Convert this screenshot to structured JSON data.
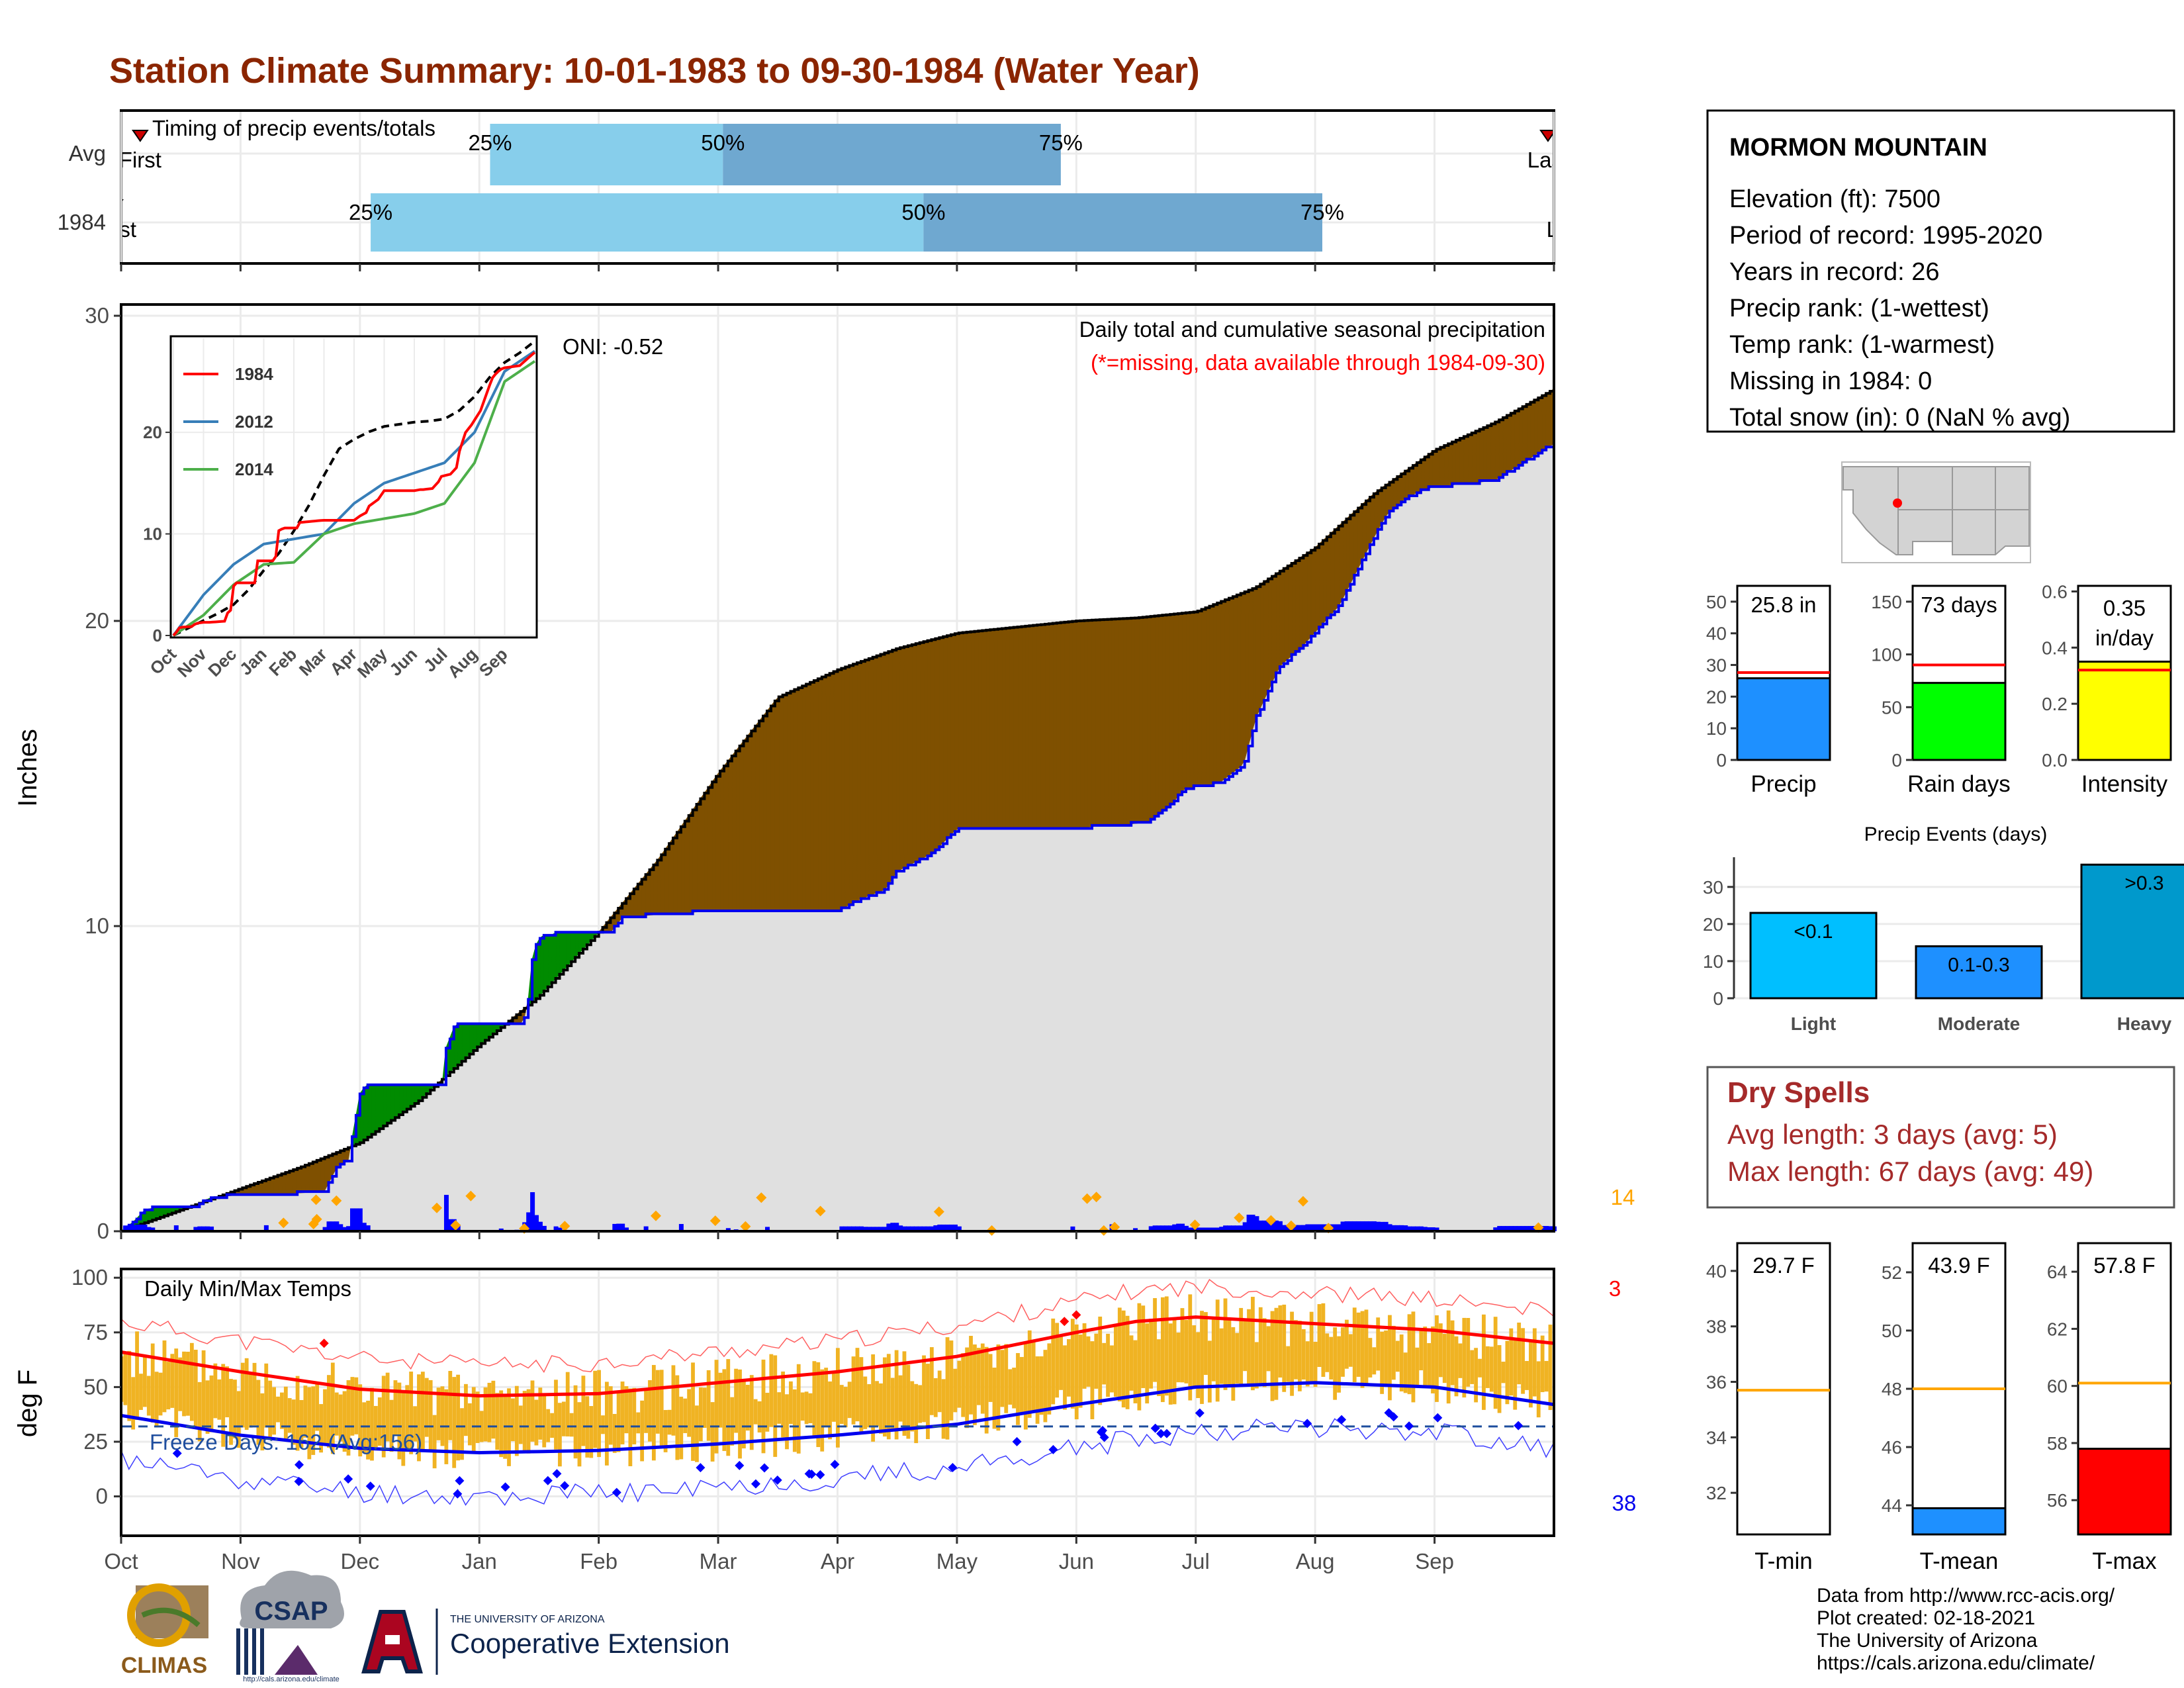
{
  "title": "Station Climate Summary: 10-01-1983 to 09-30-1984 (Water Year)",
  "colors": {
    "title": "#8B2500",
    "brown": "#7F5000",
    "green": "#008B00",
    "grey_fill": "#E0E0E0",
    "blue": "#0000EE",
    "orange": "#FFA500",
    "red": "#FF0000",
    "bar_light": "#87CEEB",
    "bar_dark": "#6FA8D0",
    "temp_bar": "#F0B323",
    "dry_red": "#A52A2A"
  },
  "timing": {
    "title": "Timing of precip events/totals",
    "rows": [
      {
        "label": "Avg",
        "first": "First",
        "last": "Last",
        "p25": "25%",
        "p50": "50%",
        "p75": "75%"
      },
      {
        "label": "1984",
        "first": "First",
        "last": "Last",
        "p25": "25%",
        "p50": "50%",
        "p75": "75%"
      }
    ],
    "dates": {
      "avg": {
        "first": 0.16,
        "p25": 3.09,
        "p50": 5.04,
        "p75": 7.87,
        "last": 11.95
      },
      "y1984": {
        "first": -0.05,
        "p25": 2.09,
        "p50": 6.72,
        "p75": 10.06,
        "last": 12.11
      }
    }
  },
  "main": {
    "ylabel": "Inches",
    "oni": "ONI: -0.52",
    "desc": "Daily total and cumulative seasonal precipitation",
    "missing_note": "(*=missing, data available through 1984-09-30)",
    "count_label": "14",
    "yticks": [
      "0",
      "10",
      "20",
      "30"
    ],
    "ylim": [
      0,
      30
    ]
  },
  "chart_data": [
    {
      "type": "area",
      "title": "Daily total and cumulative seasonal precipitation",
      "ylabel": "Inches",
      "ylim": [
        0,
        30
      ],
      "xlabels": [
        "Oct",
        "Nov",
        "Dec",
        "Jan",
        "Feb",
        "Mar",
        "Apr",
        "May",
        "Jun",
        "Jul",
        "Aug",
        "Sep"
      ],
      "series": [
        {
          "name": "1984",
          "x": [
            0,
            0.1,
            0.2,
            0.25,
            0.5,
            0.6,
            0.75,
            1.0,
            1.2,
            1.7,
            1.82,
            1.9,
            2.0,
            2.05,
            2.7,
            2.72,
            2.8,
            3.35,
            3.4,
            3.45,
            3.52,
            3.6,
            3.65,
            4.1,
            4.2,
            4.95,
            5.15,
            5.2,
            5.35,
            5.5,
            5.65,
            5.9,
            6.0,
            6.2,
            6.4,
            6.5,
            6.8,
            6.95,
            7.0,
            8.0,
            8.2,
            8.3,
            8.6,
            8.8,
            8.9,
            9.2,
            9.4,
            9.5,
            9.7,
            9.9,
            10.2,
            10.5,
            10.6,
            10.75,
            10.9,
            11.0,
            11.5,
            11.95,
            12.0
          ],
          "y": [
            0,
            0.3,
            0.7,
            0.75,
            0.8,
            0.8,
            1.1,
            1.2,
            1.2,
            1.3,
            2.2,
            2.3,
            4.5,
            4.8,
            4.8,
            6.0,
            6.8,
            6.8,
            7.2,
            9.2,
            9.7,
            9.7,
            9.8,
            9.8,
            10.3,
            10.5,
            10.5,
            10.5,
            10.5,
            10.5,
            10.5,
            10.5,
            10.5,
            10.9,
            11.2,
            11.8,
            12.4,
            13.0,
            13.2,
            13.2,
            13.3,
            13.3,
            13.4,
            14.0,
            14.5,
            14.7,
            15.3,
            16.8,
            18.5,
            19.2,
            20.5,
            22.8,
            23.5,
            24.0,
            24.3,
            24.4,
            24.6,
            25.7,
            25.8
          ]
        },
        {
          "name": "Average",
          "x": [
            0,
            0.5,
            1.0,
            1.5,
            2.0,
            2.5,
            3.0,
            3.5,
            4.0,
            4.5,
            5.0,
            5.5,
            6.0,
            6.5,
            7.0,
            7.5,
            8.0,
            8.5,
            9.0,
            9.5,
            10.0,
            10.5,
            11.0,
            11.5,
            12.0
          ],
          "y": [
            0,
            0.7,
            1.4,
            2.1,
            2.9,
            4.3,
            6.1,
            7.7,
            9.8,
            12.2,
            15.0,
            17.5,
            18.4,
            19.1,
            19.6,
            19.8,
            20.0,
            20.1,
            20.3,
            21.1,
            22.4,
            24.2,
            25.6,
            26.5,
            27.6
          ]
        }
      ]
    },
    {
      "type": "line",
      "title": "",
      "ylim": [
        0,
        29
      ],
      "xlabels": [
        "Oct",
        "Nov",
        "Dec",
        "Jan",
        "Feb",
        "Mar",
        "Apr",
        "May",
        "Jun",
        "Jul",
        "Aug",
        "Sep"
      ],
      "yticks": [
        "0",
        "10",
        "20"
      ],
      "series": [
        {
          "name": "1984",
          "color": "#FF0000"
        },
        {
          "name": "2012",
          "color": "#377EB8"
        },
        {
          "name": "2014",
          "color": "#4DAF4A"
        }
      ]
    },
    {
      "type": "bar",
      "title": "",
      "categories": [
        "Precip",
        "Rain days",
        "Intensity"
      ],
      "values": [
        25.8,
        73,
        0.35
      ],
      "value_labels": [
        "25.8 in",
        "73 days",
        "0.35 in/day"
      ],
      "avg": [
        27.6,
        90,
        0.32
      ],
      "ylims": [
        [
          0,
          55
        ],
        [
          0,
          165
        ],
        [
          0,
          0.62
        ]
      ],
      "yticks": [
        [
          "0",
          "10",
          "20",
          "30",
          "40",
          "50"
        ],
        [
          "0",
          "50",
          "100",
          "150"
        ],
        [
          "0.0",
          "0.2",
          "0.4",
          "0.6"
        ]
      ],
      "bar_colors": [
        "#1E90FF",
        "#00FF00",
        "#FFFF00"
      ]
    },
    {
      "type": "bar",
      "title": "Precip Events (days)",
      "categories": [
        "Light",
        "Moderate",
        "Heavy"
      ],
      "values": [
        23,
        14,
        36
      ],
      "value_labels": [
        "<0.1",
        "0.1-0.3",
        ">0.3"
      ],
      "ylim": [
        0,
        36
      ],
      "yticks": [
        "0",
        "10",
        "20",
        "30"
      ]
    },
    {
      "type": "bar",
      "title": "Daily Min/Max Temps",
      "ylabel": "deg F",
      "ylim": [
        -18,
        104
      ],
      "yticks": [
        "0",
        "25",
        "50",
        "75",
        "100"
      ],
      "xlabels": [
        "Oct",
        "Nov",
        "Dec",
        "Jan",
        "Feb",
        "Mar",
        "Apr",
        "May",
        "Jun",
        "Jul",
        "Aug",
        "Sep"
      ],
      "freeze_line": 32,
      "record_high_count": "3",
      "record_low_count": "38",
      "freeze_label": "Freeze Days: 162 (Avg:156)"
    },
    {
      "type": "bar",
      "title": "",
      "categories": [
        "T-min",
        "T-mean",
        "T-max"
      ],
      "values": [
        29.7,
        43.9,
        57.8
      ],
      "value_labels": [
        "29.7 F",
        "43.9 F",
        "57.8 F"
      ],
      "avg": [
        35.7,
        48.0,
        60.1
      ],
      "ylims": [
        [
          30.5,
          41
        ],
        [
          43,
          53
        ],
        [
          54.8,
          65
        ]
      ],
      "yticks": [
        [
          "32",
          "34",
          "36",
          "38",
          "40"
        ],
        [
          "44",
          "46",
          "48",
          "50",
          "52"
        ],
        [
          "56",
          "58",
          "60",
          "62",
          "64"
        ]
      ],
      "bar_colors": [
        "#FFFFFF",
        "#1E90FF",
        "#FF0000"
      ]
    }
  ],
  "months": [
    "Oct",
    "Nov",
    "Dec",
    "Jan",
    "Feb",
    "Mar",
    "Apr",
    "May",
    "Jun",
    "Jul",
    "Aug",
    "Sep"
  ],
  "station": {
    "name": "MORMON MOUNTAIN",
    "lines": [
      "Elevation (ft): 7500",
      "Period of record: 1995-2020",
      "Years in record: 26",
      "Precip rank:  (1-wettest)",
      "Temp rank:  (1-warmest)",
      "Missing in 1984: 0",
      "Total snow (in): 0 (NaN % avg)"
    ]
  },
  "dry": {
    "title": "Dry Spells",
    "avg": "Avg length: 3 days (avg: 5)",
    "max": "Max length: 67 days (avg: 49)"
  },
  "footer": {
    "lines": [
      "Data from http://www.rcc-acis.org/",
      "Plot created: 02-18-2021",
      "The University of Arizona",
      "https://cals.arizona.edu/climate/"
    ],
    "climas": "CLIMAS",
    "csap": "CSAP",
    "csap_url": "http://cals.arizona.edu/climate",
    "ua_top": "THE UNIVERSITY OF ARIZONA",
    "ua_bottom": "Cooperative Extension"
  }
}
